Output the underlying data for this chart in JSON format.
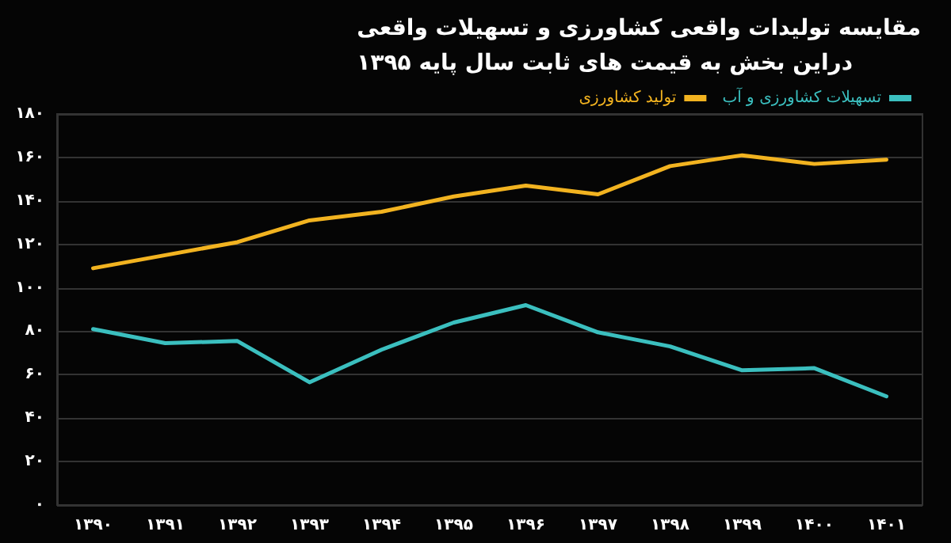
{
  "chart_data": {
    "type": "line",
    "title": "مقایسه تولیدات واقعی کشاورزی و تسهیلات واقعی\nدراین بخش به قیمت های ثابت سال پایه ۱۳۹۵",
    "categories": [
      "۱۳۹۰",
      "۱۳۹۱",
      "۱۳۹۲",
      "۱۳۹۳",
      "۱۳۹۴",
      "۱۳۹۵",
      "۱۳۹۶",
      "۱۳۹۷",
      "۱۳۹۸",
      "۱۳۹۹",
      "۱۴۰۰",
      "۱۴۰۱"
    ],
    "series": [
      {
        "name": "تولید کشاورزی",
        "color": "#f2b320",
        "values": [
          109,
          115,
          121,
          131,
          135,
          142,
          147,
          143,
          156,
          161,
          157,
          159
        ]
      },
      {
        "name": "تسهیلات کشاورزی و آب",
        "color": "#3bbfbf",
        "values": [
          81,
          74.5,
          75.5,
          56.5,
          71.5,
          84,
          92,
          79.5,
          73,
          62,
          63,
          50
        ]
      }
    ],
    "ylim": [
      0,
      180
    ],
    "yticks": [
      {
        "value": 0,
        "label": "۰"
      },
      {
        "value": 20,
        "label": "۲۰"
      },
      {
        "value": 40,
        "label": "۴۰"
      },
      {
        "value": 60,
        "label": "۶۰"
      },
      {
        "value": 80,
        "label": "۸۰"
      },
      {
        "value": 100,
        "label": "۱۰۰"
      },
      {
        "value": 120,
        "label": "۱۲۰"
      },
      {
        "value": 140,
        "label": "۱۴۰"
      },
      {
        "value": 160,
        "label": "۱۶۰"
      },
      {
        "value": 180,
        "label": "۱۸۰"
      }
    ],
    "grid": "y",
    "legend": "top right",
    "marker": "none",
    "line_style": "solid"
  }
}
